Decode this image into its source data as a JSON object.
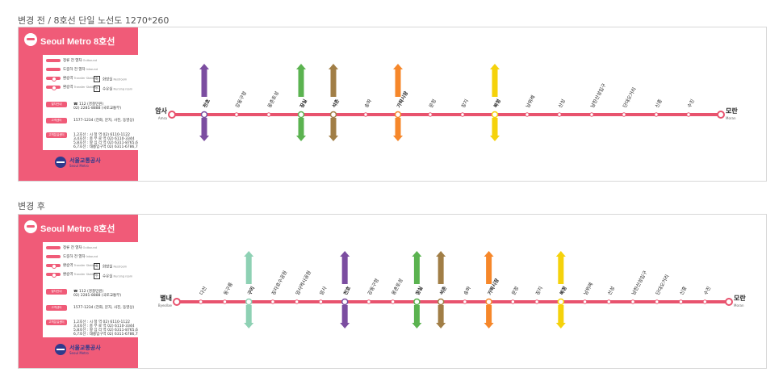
{
  "captions": {
    "before": "변경 전 / 8호선 단일 노선도 1270*260",
    "after": "변경 후"
  },
  "brand": {
    "logo_text": "Seoul Metro 8호선",
    "company_ko": "서울교통공사",
    "company_en": "Seoul Metro"
  },
  "legend": {
    "rows": [
      {
        "ko": "정류 전 열차",
        "en": "Outbound"
      },
      {
        "ko": "도중하 전 열차",
        "en": "Inbound"
      },
      {
        "ko": "환승역",
        "en": "Transfer Station"
      },
      {
        "ko": "환승역",
        "en": "Transfer Station"
      }
    ],
    "symbols": [
      {
        "glyph": "화",
        "label": "화장실",
        "sub": "Restroom"
      },
      {
        "glyph": "수",
        "label": "수유실",
        "sub": "Nursing room"
      }
    ],
    "tags": [
      "열차안내",
      "고객센터",
      "고객분실센터"
    ],
    "info_lines": [
      [
        "☎ 112 (경찰민원)",
        "02) 2281-8888 (국토교통부)"
      ],
      [
        "1577-1234 (전화, 문자, 사진, 동영상)"
      ],
      [
        "1,2호선 : 시 청 역 02) 6110-1122",
        "3,4호선 : 충 무 로 역 02) 6110-3344",
        "5,8호선 : 왕 십 리 역 02) 6311-8765,6",
        "6,7호선 : 태릉입구역 02) 6311-6786,7"
      ]
    ]
  },
  "colors": {
    "line8": "#E8536E",
    "line1": "#0D3692",
    "line2": "#33A23D",
    "line3": "#FE5B10",
    "line4": "#32A1C8",
    "line5": "#8B50A4",
    "line6": "#C55C1D",
    "line7": "#54640D",
    "line9": "#BDB092",
    "bundang": "#F5A200",
    "gyeongui": "#77C4A3",
    "beige": "#A17E46",
    "purple": "#7B4DA0",
    "green": "#5BB350",
    "orange": "#F6872A",
    "yellow": "#F5D20B",
    "teal": "#2E8B7A",
    "mint": "#8ED1B4"
  },
  "before": {
    "terminus_left": {
      "ko": "암사",
      "en": "Amsa"
    },
    "terminus_right": {
      "ko": "모란",
      "en": "Moran"
    },
    "stations": [
      {
        "ko": "천호",
        "transfer": "purple"
      },
      {
        "ko": "강동구청"
      },
      {
        "ko": "몽촌토성"
      },
      {
        "ko": "잠실",
        "transfer": "green"
      },
      {
        "ko": "석촌",
        "transfer": "beige"
      },
      {
        "ko": "송파"
      },
      {
        "ko": "가락시장",
        "transfer": "orange"
      },
      {
        "ko": "문정"
      },
      {
        "ko": "장지"
      },
      {
        "ko": "복정",
        "transfer": "yellow"
      },
      {
        "ko": "남위례"
      },
      {
        "ko": "산성"
      },
      {
        "ko": "남한산성입구"
      },
      {
        "ko": "단대오거리"
      },
      {
        "ko": "신흥"
      },
      {
        "ko": "수진"
      }
    ]
  },
  "after": {
    "terminus_left": {
      "ko": "별내",
      "en": "Byeollae"
    },
    "terminus_right": {
      "ko": "모란",
      "en": "Moran"
    },
    "stations": [
      {
        "ko": "다산"
      },
      {
        "ko": "동구릉"
      },
      {
        "ko": "구리",
        "transfer": "mint"
      },
      {
        "ko": "장자호수공원"
      },
      {
        "ko": "암사역사공원"
      },
      {
        "ko": "암사"
      },
      {
        "ko": "천호",
        "transfer": "purple"
      },
      {
        "ko": "강동구청"
      },
      {
        "ko": "몽촌토성"
      },
      {
        "ko": "잠실",
        "transfer": "green"
      },
      {
        "ko": "석촌",
        "transfer": "beige"
      },
      {
        "ko": "송파"
      },
      {
        "ko": "가락시장",
        "transfer": "orange"
      },
      {
        "ko": "문정"
      },
      {
        "ko": "장지"
      },
      {
        "ko": "복정",
        "transfer": "yellow"
      },
      {
        "ko": "남위례"
      },
      {
        "ko": "산성"
      },
      {
        "ko": "남한산성입구"
      },
      {
        "ko": "단대오거리"
      },
      {
        "ko": "신흥"
      },
      {
        "ko": "수진"
      }
    ]
  }
}
